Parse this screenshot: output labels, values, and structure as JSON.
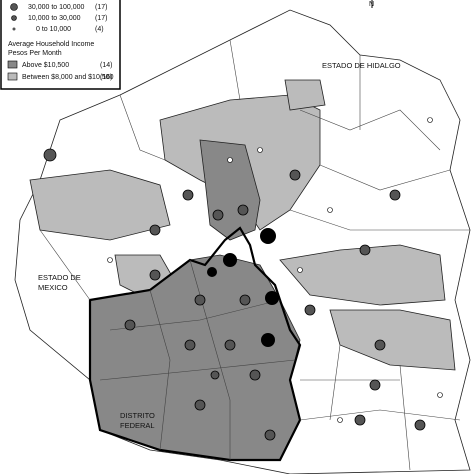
{
  "legend": {
    "size_rows": [
      {
        "range": "30,000 to 100,000",
        "count": "(17)"
      },
      {
        "range": "10,000 to 30,000",
        "count": "(17)"
      },
      {
        "range": "0 to 10,000",
        "count": "(4)"
      }
    ],
    "income_title": "Average Household Income",
    "income_subtitle": "Pesos Per Month",
    "income_rows": [
      {
        "label": "Above $10,500",
        "count": "(14)"
      },
      {
        "label": "Between $8,000 and $10,500",
        "count": "(16)"
      }
    ]
  },
  "labels": {
    "north": "N",
    "hidalgo": "ESTADO DE HIDALGO",
    "mexico": [
      "ESTADO DE",
      "MEXICO"
    ],
    "df": [
      "DISTRITO",
      "FEDERAL"
    ]
  }
}
